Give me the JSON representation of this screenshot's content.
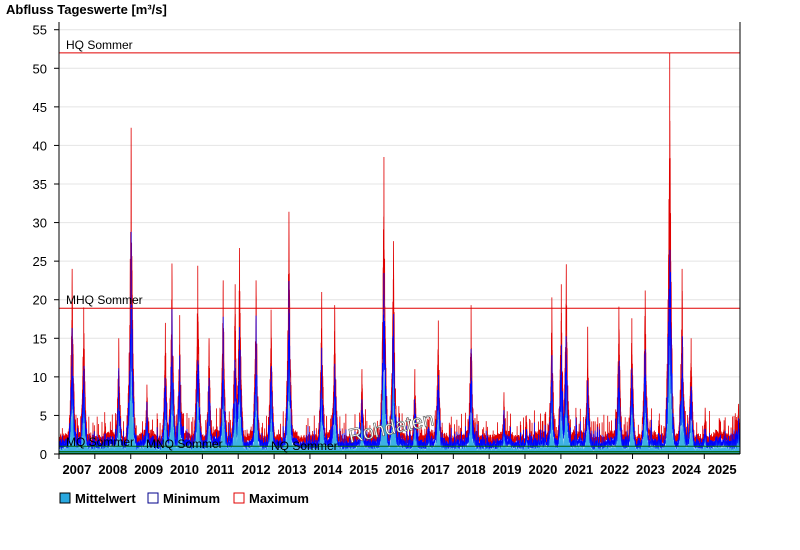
{
  "chart_data": {
    "type": "area",
    "title": "Abfluss Tageswerte [m³/s]",
    "unit": "m³/s",
    "ylim": [
      0,
      56
    ],
    "yticks": [
      0,
      5,
      10,
      15,
      20,
      25,
      30,
      35,
      40,
      45,
      50,
      55
    ],
    "xlim": [
      "2007-01-01",
      "2025-12-31"
    ],
    "x_ticks": [
      "2007",
      "2008",
      "2009",
      "2010",
      "2011",
      "2012",
      "2013",
      "2014",
      "2015",
      "2016",
      "2017",
      "2018",
      "2019",
      "2020",
      "2021",
      "2022",
      "2023",
      "2024",
      "2025"
    ],
    "grid": true,
    "legend_position": "bottom",
    "series": [
      {
        "name": "Mittelwert",
        "color": "#1E90FF",
        "fill": "#29A8E0",
        "role": "mean"
      },
      {
        "name": "Minimum",
        "color": "#00008B",
        "role": "min"
      },
      {
        "name": "Maximum",
        "color": "#E00000",
        "role": "max"
      }
    ],
    "peaks_max": [
      {
        "date": "2007-05-15",
        "value": 24
      },
      {
        "date": "2007-09-10",
        "value": 19
      },
      {
        "date": "2008-09-01",
        "value": 15
      },
      {
        "date": "2009-01-05",
        "value": 42.3
      },
      {
        "date": "2009-06-15",
        "value": 9
      },
      {
        "date": "2009-12-20",
        "value": 17
      },
      {
        "date": "2010-02-25",
        "value": 24.7
      },
      {
        "date": "2010-05-15",
        "value": 18
      },
      {
        "date": "2010-11-15",
        "value": 24.4
      },
      {
        "date": "2011-03-10",
        "value": 15
      },
      {
        "date": "2011-08-01",
        "value": 22.5
      },
      {
        "date": "2011-12-01",
        "value": 22
      },
      {
        "date": "2012-01-15",
        "value": 26.7
      },
      {
        "date": "2012-07-01",
        "value": 22.5
      },
      {
        "date": "2012-12-01",
        "value": 18.7
      },
      {
        "date": "2013-06-01",
        "value": 31.4
      },
      {
        "date": "2014-05-01",
        "value": 21
      },
      {
        "date": "2014-09-10",
        "value": 19.3
      },
      {
        "date": "2015-06-15",
        "value": 11
      },
      {
        "date": "2016-01-25",
        "value": 38.5
      },
      {
        "date": "2016-05-01",
        "value": 27.6
      },
      {
        "date": "2016-12-05",
        "value": 11
      },
      {
        "date": "2017-08-01",
        "value": 17.3
      },
      {
        "date": "2018-07-01",
        "value": 19.3
      },
      {
        "date": "2019-06-01",
        "value": 8
      },
      {
        "date": "2020-01-15",
        "value": 5
      },
      {
        "date": "2020-10-01",
        "value": 20.3
      },
      {
        "date": "2021-01-05",
        "value": 22
      },
      {
        "date": "2021-02-25",
        "value": 24.6
      },
      {
        "date": "2021-10-01",
        "value": 16.5
      },
      {
        "date": "2022-08-15",
        "value": 19.1
      },
      {
        "date": "2022-12-25",
        "value": 17.6
      },
      {
        "date": "2023-05-10",
        "value": 21.2
      },
      {
        "date": "2024-01-15",
        "value": 52
      },
      {
        "date": "2024-05-20",
        "value": 24
      },
      {
        "date": "2024-08-20",
        "value": 15
      },
      {
        "date": "2025-01-10",
        "value": 6
      },
      {
        "date": "2025-12-15",
        "value": 6.5
      }
    ],
    "reference_lines": [
      {
        "label": "HQ Sommer",
        "value": 52,
        "color": "#E00000"
      },
      {
        "label": "MHQ Sommer",
        "value": 18.9,
        "color": "#E00000"
      },
      {
        "label": "MQ Sommer",
        "value": 1.0,
        "color": "#006400"
      },
      {
        "label": "MNQ Sommer",
        "value": 0.3,
        "color": "#006400"
      },
      {
        "label": "NQ Sommer",
        "value": 0.1,
        "color": "#006400"
      }
    ],
    "watermark": "Rohdaten"
  },
  "legend": {
    "items": [
      {
        "label": "Mittelwert",
        "color": "#29A8E0",
        "border": "#000000"
      },
      {
        "label": "Minimum",
        "color": "#ffffff",
        "border": "#00008B"
      },
      {
        "label": "Maximum",
        "color": "#ffffff",
        "border": "#E00000"
      }
    ]
  }
}
